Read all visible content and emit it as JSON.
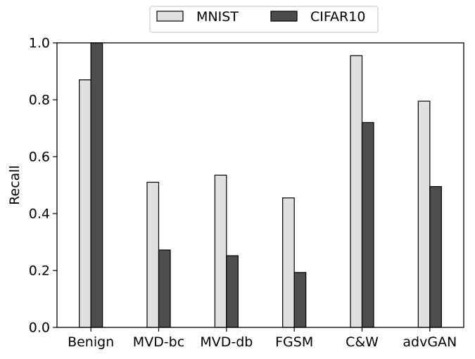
{
  "chart_data": {
    "type": "bar",
    "title": "",
    "xlabel": "",
    "ylabel": "Recall",
    "ylim": [
      0,
      1.0
    ],
    "yticks": [
      "0.0",
      "0.2",
      "0.4",
      "0.6",
      "0.8",
      "1.0"
    ],
    "categories": [
      "Benign",
      "MVD-bc",
      "MVD-db",
      "FGSM",
      "C&W",
      "advGAN"
    ],
    "series": [
      {
        "name": "MNIST",
        "color": "#e0e0e0",
        "values": [
          0.87,
          0.51,
          0.535,
          0.455,
          0.955,
          0.795
        ]
      },
      {
        "name": "CIFAR10",
        "color": "#4d4d4d",
        "values": [
          1.0,
          0.272,
          0.252,
          0.193,
          0.72,
          0.495
        ]
      }
    ],
    "legend_position": "top-center",
    "grid": false
  }
}
